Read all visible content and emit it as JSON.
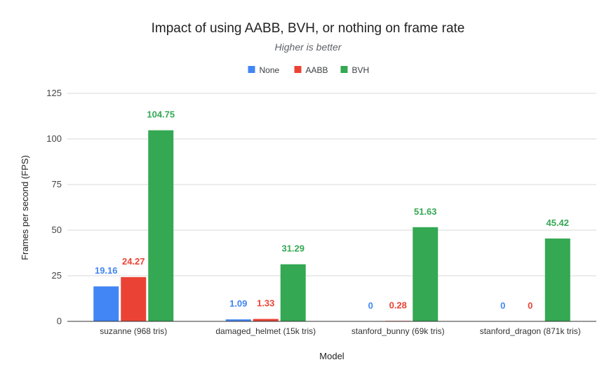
{
  "chart_data": {
    "type": "bar",
    "title": "Impact of using AABB, BVH, or nothing on frame rate",
    "subtitle": "Higher is better",
    "xlabel": "Model",
    "ylabel": "Frames per second (FPS)",
    "ylim": [
      0,
      125
    ],
    "yticks": [
      0,
      25,
      50,
      75,
      100,
      125
    ],
    "grid": true,
    "legend_position": "top",
    "categories": [
      "suzanne (968 tris)",
      "damaged_helmet (15k tris)",
      "stanford_bunny (69k tris)",
      "stanford_dragon (871k tris)"
    ],
    "series": [
      {
        "name": "None",
        "color": "#4285f4",
        "values": [
          19.16,
          1.09,
          0,
          0
        ]
      },
      {
        "name": "AABB",
        "color": "#ea4335",
        "values": [
          24.27,
          1.33,
          0.28,
          0
        ]
      },
      {
        "name": "BVH",
        "color": "#34a853",
        "values": [
          104.75,
          31.29,
          51.63,
          45.42
        ]
      }
    ]
  }
}
